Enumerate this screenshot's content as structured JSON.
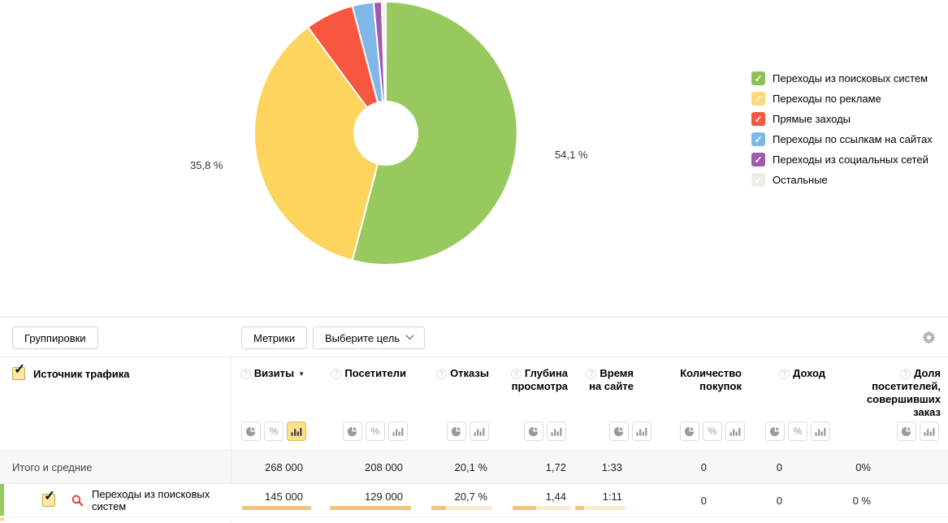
{
  "chart_data": {
    "type": "pie",
    "donut": true,
    "legend_position": "right",
    "slices": [
      {
        "label": "Переходы из поисковых систем",
        "value": 54.1,
        "color": "#97c95e",
        "display_label": "54,1 %"
      },
      {
        "label": "Переходы по рекламе",
        "value": 35.8,
        "color": "#fcd45e",
        "display_label": "35,8 %"
      },
      {
        "label": "Прямые заходы",
        "value": 6.0,
        "color": "#f8573f",
        "display_label": ""
      },
      {
        "label": "Переходы по ссылкам на сайтах",
        "value": 2.6,
        "color": "#7fb8e8",
        "display_label": ""
      },
      {
        "label": "Переходы из социальных сетей",
        "value": 1.0,
        "color": "#a159ae",
        "display_label": ""
      },
      {
        "label": "Остальные",
        "value": 0.5,
        "color": "#f0f0ea",
        "display_label": ""
      }
    ],
    "outer_labels": {
      "right": "54,1 %",
      "left": "35,8 %"
    }
  },
  "legend": {
    "items": [
      {
        "label": "Переходы из поисковых систем",
        "color": "#8cc152",
        "checked": true,
        "icon": "checkbox-icon"
      },
      {
        "label": "Переходы по рекламе",
        "color": "#fbda7a",
        "checked": true,
        "icon": "checkbox-icon"
      },
      {
        "label": "Прямые заходы",
        "color": "#f8573f",
        "checked": true,
        "icon": "checkbox-icon"
      },
      {
        "label": "Переходы по ссылкам на сайтах",
        "color": "#7fb8e8",
        "checked": true,
        "icon": "checkbox-icon"
      },
      {
        "label": "Переходы из социальных сетей",
        "color": "#a159ae",
        "checked": true,
        "icon": "checkbox-icon"
      },
      {
        "label": "Остальные",
        "color": "#ededE6",
        "checked": true,
        "icon": "checkbox-icon"
      }
    ]
  },
  "toolbar": {
    "groupings_label": "Группировки",
    "metrics_label": "Метрики",
    "goal_label": "Выберите цель",
    "settings_icon": "gear-icon"
  },
  "table": {
    "dimension_header": {
      "label": "Источник трафика",
      "checked": true
    },
    "columns": [
      {
        "label": "Визиты",
        "help": true,
        "sorted": "desc",
        "icons": [
          "pie",
          "percent",
          "bars"
        ],
        "active_icon": "bars"
      },
      {
        "label": "Посетители",
        "help": true,
        "icons": [
          "pie",
          "percent",
          "bars"
        ]
      },
      {
        "label": "Отказы",
        "help": true,
        "icons": [
          "pie",
          "bars"
        ]
      },
      {
        "label": "Глубина просмотра",
        "help": true,
        "icons": [
          "pie",
          "bars"
        ]
      },
      {
        "label": "Время на сайте",
        "help": true,
        "icons": [
          "pie",
          "bars"
        ]
      },
      {
        "label": "Количество покупок",
        "help": false,
        "icons": [
          "pie",
          "percent",
          "bars"
        ]
      },
      {
        "label": "Доход",
        "help": true,
        "icons": [
          "pie",
          "percent",
          "bars"
        ]
      },
      {
        "label": "Доля посетителей, совершивших заказ",
        "help": true,
        "icons": [
          "pie",
          "bars"
        ]
      }
    ],
    "totals_row": {
      "label": "Итого и средние",
      "values": [
        "268 000",
        "208 000",
        "20,1 %",
        "1,72",
        "1:33",
        "0",
        "0",
        "0%"
      ]
    },
    "rows": [
      {
        "label": "Переходы из поисковых систем",
        "row_color": "#97c95e",
        "checked": true,
        "icon": "magnifier-icon",
        "values": [
          "145 000",
          "129 000",
          "20,7 %",
          "1,44",
          "1:11",
          "0",
          "0",
          "0 %"
        ],
        "bar_fill_pct": [
          100,
          100,
          24,
          40,
          17,
          0,
          0,
          0
        ]
      }
    ],
    "next_row_peek": {
      "row_color": "#fcd45e"
    }
  }
}
